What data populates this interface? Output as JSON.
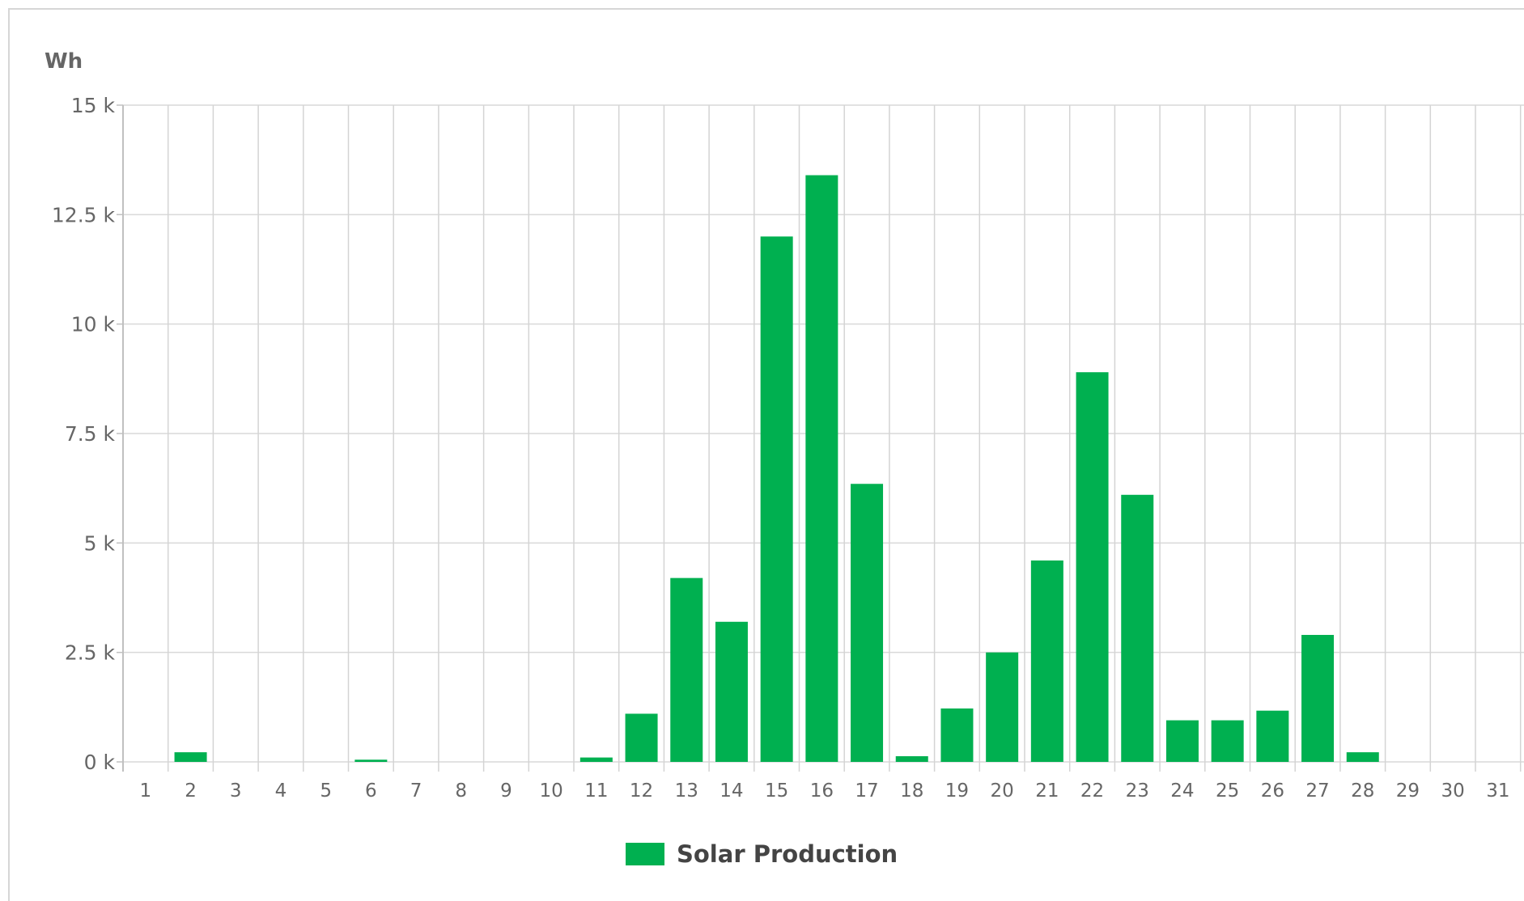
{
  "chart_data": {
    "type": "bar",
    "title": "",
    "xlabel": "",
    "ylabel": "Wh",
    "ylim": [
      0,
      15000
    ],
    "y_ticks": [
      0,
      2500,
      5000,
      7500,
      10000,
      12500,
      15000
    ],
    "y_tick_labels": [
      "0 k",
      "2.5 k",
      "5 k",
      "7.5 k",
      "10 k",
      "12.5 k",
      "15 k"
    ],
    "categories": [
      "1",
      "2",
      "3",
      "4",
      "5",
      "6",
      "7",
      "8",
      "9",
      "10",
      "11",
      "12",
      "13",
      "14",
      "15",
      "16",
      "17",
      "18",
      "19",
      "20",
      "21",
      "22",
      "23",
      "24",
      "25",
      "26",
      "27",
      "28",
      "29",
      "30",
      "31"
    ],
    "series": [
      {
        "name": "Solar Production",
        "color": "#00b050",
        "values": [
          0,
          220,
          0,
          0,
          0,
          50,
          0,
          0,
          0,
          0,
          100,
          1100,
          4200,
          3200,
          12000,
          13400,
          6350,
          130,
          1220,
          2500,
          4600,
          8900,
          6100,
          950,
          950,
          1170,
          2900,
          220,
          0,
          0,
          0
        ]
      }
    ],
    "grid": true,
    "legend": "bottom-center"
  }
}
